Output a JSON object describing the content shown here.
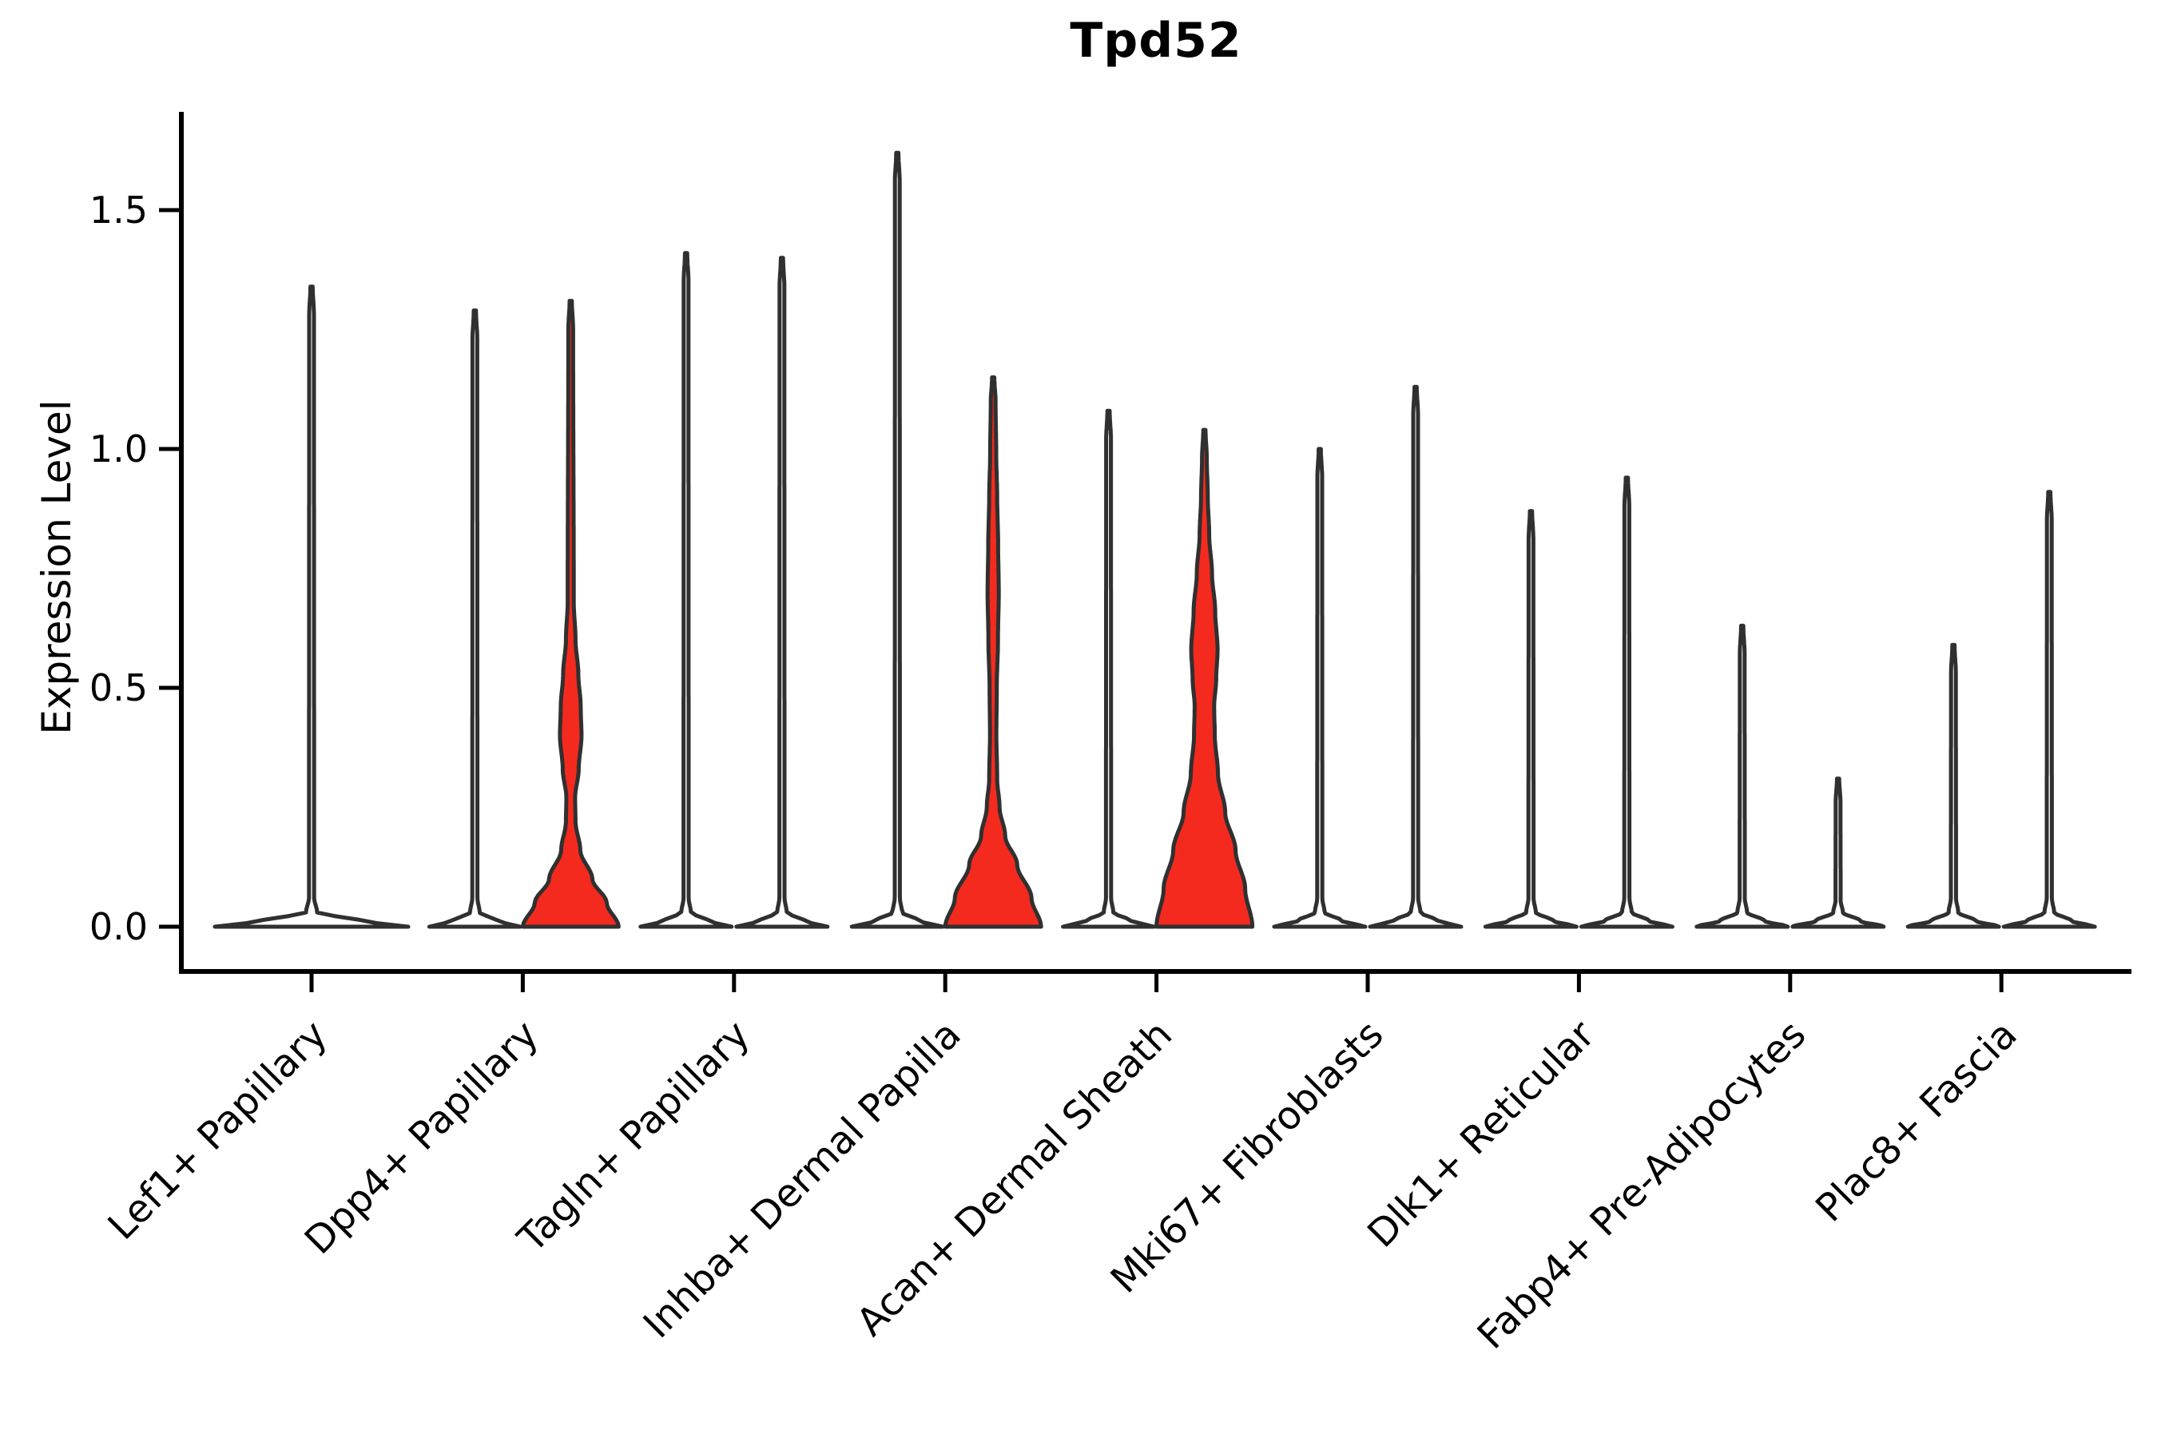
{
  "chart_data": {
    "type": "violin",
    "title": "Tpd52",
    "ylabel": "Expression Level",
    "xlabel": "",
    "ylim": [
      -0.095,
      1.71
    ],
    "grid": false,
    "legend": "none",
    "yticks": [
      {
        "label": "0.0",
        "value": 0.0
      },
      {
        "label": "0.5",
        "value": 0.5
      },
      {
        "label": "1.0",
        "value": 1.0
      },
      {
        "label": "1.5",
        "value": 1.5
      }
    ],
    "categories": [
      "Lef1+ Papillary",
      "Dpp4+ Papillary",
      "Tagln+ Papillary",
      "Inhba+ Dermal Papilla",
      "Acan+ Dermal Sheath",
      "Mki67+ Fibroblasts",
      "Dlk1+ Reticular",
      "Fabp4+ Pre-Adipocytes",
      "Plac8+ Fascia"
    ],
    "violins": [
      {
        "category": "Lef1+ Papillary",
        "position": "full",
        "max_expression": 1.34,
        "fill": "white",
        "profile": [
          [
            0,
            121
          ],
          [
            0.012,
            62
          ],
          [
            0.03,
            7
          ],
          [
            0.06,
            3.2
          ],
          [
            1.28,
            3
          ],
          [
            1.34,
            1.4
          ]
        ]
      },
      {
        "category": "Dpp4+ Papillary",
        "position": "left",
        "max_expression": 1.29,
        "fill": "white",
        "profile": [
          [
            0,
            57
          ],
          [
            0.012,
            28
          ],
          [
            0.03,
            6
          ],
          [
            0.06,
            3.2
          ],
          [
            1.23,
            3
          ],
          [
            1.29,
            1.4
          ]
        ]
      },
      {
        "category": "Dpp4+ Papillary",
        "position": "right",
        "max_expression": 1.31,
        "fill": "red",
        "profile": [
          [
            0,
            60
          ],
          [
            0.05,
            45
          ],
          [
            0.1,
            27
          ],
          [
            0.16,
            12
          ],
          [
            0.22,
            6
          ],
          [
            0.27,
            5.5
          ],
          [
            0.33,
            10
          ],
          [
            0.4,
            13.5
          ],
          [
            0.46,
            12.5
          ],
          [
            0.53,
            9.5
          ],
          [
            0.6,
            6
          ],
          [
            0.68,
            3.8
          ],
          [
            1.25,
            3
          ],
          [
            1.31,
            1.4
          ]
        ]
      },
      {
        "category": "Tagln+ Papillary",
        "position": "left",
        "max_expression": 1.41,
        "fill": "white",
        "profile": [
          [
            0,
            57
          ],
          [
            0.012,
            28
          ],
          [
            0.03,
            6
          ],
          [
            0.06,
            3.2
          ],
          [
            1.35,
            3
          ],
          [
            1.41,
            1.4
          ]
        ]
      },
      {
        "category": "Tagln+ Papillary",
        "position": "right",
        "max_expression": 1.4,
        "fill": "white",
        "profile": [
          [
            0,
            57
          ],
          [
            0.012,
            28
          ],
          [
            0.03,
            6
          ],
          [
            0.06,
            3.2
          ],
          [
            1.34,
            3
          ],
          [
            1.4,
            1.4
          ]
        ]
      },
      {
        "category": "Inhba+ Dermal Papilla",
        "position": "left",
        "max_expression": 1.62,
        "fill": "white",
        "profile": [
          [
            0,
            57
          ],
          [
            0.012,
            28
          ],
          [
            0.03,
            6
          ],
          [
            0.06,
            3.2
          ],
          [
            1.56,
            3
          ],
          [
            1.62,
            1.4
          ]
        ]
      },
      {
        "category": "Inhba+ Dermal Papilla",
        "position": "right",
        "max_expression": 1.15,
        "fill": "red",
        "profile": [
          [
            0,
            60
          ],
          [
            0.06,
            48
          ],
          [
            0.13,
            30
          ],
          [
            0.19,
            15
          ],
          [
            0.25,
            8
          ],
          [
            0.31,
            5
          ],
          [
            0.4,
            4
          ],
          [
            0.5,
            4.5
          ],
          [
            0.6,
            6
          ],
          [
            0.7,
            7
          ],
          [
            0.8,
            6.2
          ],
          [
            0.9,
            5
          ],
          [
            0.99,
            3.8
          ],
          [
            1.1,
            3
          ],
          [
            1.15,
            1.4
          ]
        ]
      },
      {
        "category": "Acan+ Dermal Sheath",
        "position": "left",
        "max_expression": 1.08,
        "fill": "white",
        "profile": [
          [
            0,
            57
          ],
          [
            0.012,
            28
          ],
          [
            0.03,
            6
          ],
          [
            0.06,
            3.2
          ],
          [
            1.02,
            3
          ],
          [
            1.08,
            1.4
          ]
        ]
      },
      {
        "category": "Acan+ Dermal Sheath",
        "position": "right",
        "max_expression": 1.04,
        "fill": "red",
        "profile": [
          [
            0,
            60
          ],
          [
            0.08,
            51
          ],
          [
            0.16,
            39
          ],
          [
            0.24,
            26
          ],
          [
            0.32,
            17
          ],
          [
            0.4,
            13
          ],
          [
            0.46,
            12.2
          ],
          [
            0.52,
            14.8
          ],
          [
            0.58,
            16.5
          ],
          [
            0.66,
            13.5
          ],
          [
            0.74,
            9.5
          ],
          [
            0.82,
            6
          ],
          [
            0.9,
            4.2
          ],
          [
            0.98,
            3
          ],
          [
            1.04,
            1.4
          ]
        ]
      },
      {
        "category": "Mki67+ Fibroblasts",
        "position": "left",
        "max_expression": 1.0,
        "fill": "white",
        "profile": [
          [
            0,
            57
          ],
          [
            0.012,
            28
          ],
          [
            0.03,
            6
          ],
          [
            0.06,
            3.2
          ],
          [
            0.94,
            3
          ],
          [
            1.0,
            1.4
          ]
        ]
      },
      {
        "category": "Mki67+ Fibroblasts",
        "position": "right",
        "max_expression": 1.13,
        "fill": "white",
        "profile": [
          [
            0,
            57
          ],
          [
            0.012,
            28
          ],
          [
            0.03,
            6
          ],
          [
            0.06,
            3.2
          ],
          [
            1.07,
            3
          ],
          [
            1.13,
            1.4
          ]
        ]
      },
      {
        "category": "Dlk1+ Reticular",
        "position": "left",
        "max_expression": 0.87,
        "fill": "white",
        "profile": [
          [
            0,
            57
          ],
          [
            0.012,
            28
          ],
          [
            0.03,
            6
          ],
          [
            0.06,
            3.2
          ],
          [
            0.81,
            3
          ],
          [
            0.87,
            1.4
          ]
        ]
      },
      {
        "category": "Dlk1+ Reticular",
        "position": "right",
        "max_expression": 0.94,
        "fill": "white",
        "profile": [
          [
            0,
            57
          ],
          [
            0.012,
            28
          ],
          [
            0.03,
            6
          ],
          [
            0.06,
            3.2
          ],
          [
            0.88,
            3
          ],
          [
            0.94,
            1.4
          ]
        ]
      },
      {
        "category": "Fabp4+ Pre-Adipocytes",
        "position": "left",
        "max_expression": 0.63,
        "fill": "white",
        "profile": [
          [
            0,
            57
          ],
          [
            0.012,
            28
          ],
          [
            0.03,
            6
          ],
          [
            0.06,
            3.2
          ],
          [
            0.57,
            3
          ],
          [
            0.63,
            1.4
          ]
        ]
      },
      {
        "category": "Fabp4+ Pre-Adipocytes",
        "position": "right",
        "max_expression": 0.31,
        "fill": "white",
        "profile": [
          [
            0,
            57
          ],
          [
            0.012,
            28
          ],
          [
            0.03,
            6
          ],
          [
            0.055,
            3.2
          ],
          [
            0.26,
            3
          ],
          [
            0.31,
            1.4
          ]
        ]
      },
      {
        "category": "Plac8+ Fascia",
        "position": "left",
        "max_expression": 0.59,
        "fill": "white",
        "profile": [
          [
            0,
            57
          ],
          [
            0.012,
            28
          ],
          [
            0.03,
            6
          ],
          [
            0.06,
            3.2
          ],
          [
            0.53,
            3
          ],
          [
            0.59,
            1.4
          ]
        ]
      },
      {
        "category": "Plac8+ Fascia",
        "position": "right",
        "max_expression": 0.91,
        "fill": "white",
        "profile": [
          [
            0,
            57
          ],
          [
            0.012,
            28
          ],
          [
            0.03,
            6
          ],
          [
            0.06,
            3.2
          ],
          [
            0.85,
            3
          ],
          [
            0.91,
            1.4
          ]
        ]
      }
    ]
  },
  "colors": {
    "red": "#F52A1F",
    "white": "#FFFFFF",
    "outline": "#303030",
    "axis": "#000000",
    "text": "#000000",
    "background": "#FFFFFF"
  }
}
